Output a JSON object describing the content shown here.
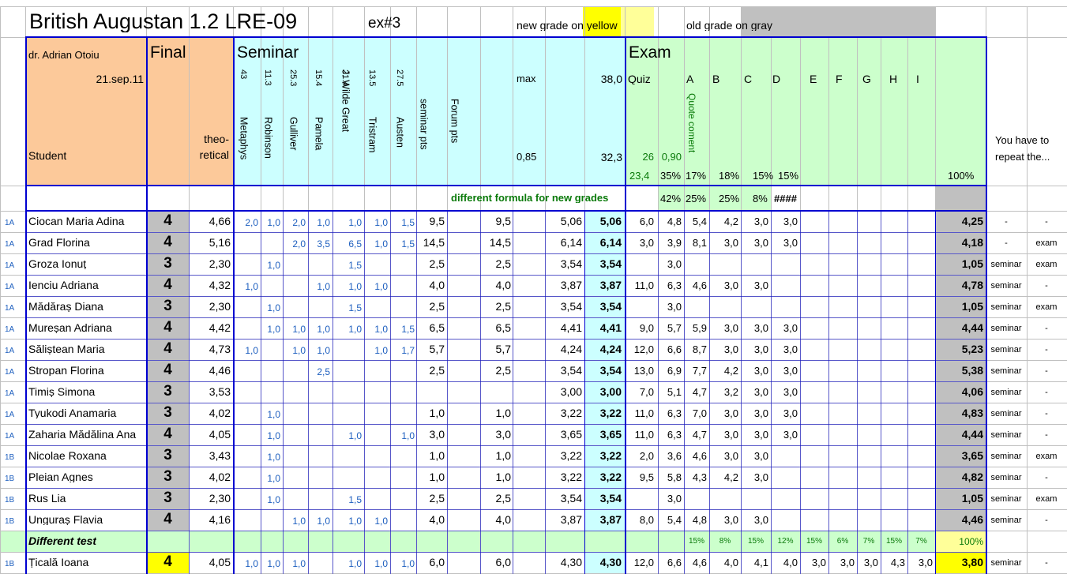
{
  "sheet": {
    "title": "British Augustan 1.2 LRE-09",
    "exercise": "ex#3",
    "legend_new_prefix": "new grade ",
    "legend_new_highlight": "on yellow",
    "legend_old_prefix": "old grade ",
    "legend_old_highlight": "on gray"
  },
  "header": {
    "teacher": "dr. Adrian Otoiu",
    "date": "21.sep.11",
    "student_label": "Student",
    "final_label": "Final",
    "theoretical_label": "theo-\nretical",
    "seminar_label": "Seminar",
    "exam_label": "Exam",
    "repeat_label": "You have to repeat the...",
    "max_label": "max",
    "max_value": "38,0",
    "coef_label": "0,85",
    "coef_value": "32,3",
    "quiz_label": "Quiz",
    "exam_letters": [
      "A",
      "B",
      "C",
      "D",
      "E",
      "F",
      "G",
      "H",
      "I"
    ],
    "quote_label": "Quote coment",
    "quiz_small1": "26",
    "quiz_small2": "0,90",
    "pct_row": [
      "23,4",
      "35%",
      "17%",
      "18%",
      "15%",
      "15%",
      "100%"
    ]
  },
  "seminar_cols": [
    {
      "pct": "43",
      "name": "Metaphys"
    },
    {
      "pct": "11.3",
      "name": "Robinson"
    },
    {
      "pct": "25.3",
      "name": "Gulliver"
    },
    {
      "pct": "15.4",
      "name": "Pamela"
    },
    {
      "pct": "21.4",
      "name": "J. Wilde Great"
    },
    {
      "pct": "13.5",
      "name": "Tristram"
    },
    {
      "pct": "27.5",
      "name": "Austen"
    },
    {
      "pct": "",
      "name": "seminar pts"
    },
    {
      "pct": "",
      "name": "Forum pts"
    }
  ],
  "formula_row": {
    "note": "different formula for new grades",
    "p1": "42%",
    "p2": "25%",
    "p3": "25%",
    "p4": "8%",
    "p5": "####"
  },
  "rows": [
    {
      "g": "1A",
      "name": "Ciocan Maria Adina",
      "final": "4",
      "theo": "4,66",
      "s": [
        "2,0",
        "1,0",
        "2,0",
        "1,0",
        "1,0",
        "1,0",
        "1,5"
      ],
      "sp": "9,5",
      "fp": "9,5",
      "a": "5,06",
      "b": "5,06",
      "q1": "6,0",
      "q2": "4,8",
      "e": [
        "5,4",
        "4,2",
        "3,0",
        "3,0",
        "",
        "",
        "",
        "",
        ""
      ],
      "res": "4,25",
      "rep1": "-",
      "rep2": "-"
    },
    {
      "g": "1A",
      "name": "Grad Florina",
      "final": "4",
      "theo": "5,16",
      "s": [
        "",
        "",
        "2,0",
        "3,5",
        "6,5",
        "1,0",
        "1,5"
      ],
      "sp": "14,5",
      "fp": "14,5",
      "a": "6,14",
      "b": "6,14",
      "q1": "3,0",
      "q2": "3,9",
      "e": [
        "8,1",
        "3,0",
        "3,0",
        "3,0",
        "",
        "",
        "",
        "",
        ""
      ],
      "res": "4,18",
      "rep1": "-",
      "rep2": "exam"
    },
    {
      "g": "1A",
      "name": "Groza Ionuț",
      "final": "3",
      "theo": "2,30",
      "s": [
        "",
        "1,0",
        "",
        "",
        "1,5",
        "",
        ""
      ],
      "sp": "2,5",
      "fp": "2,5",
      "a": "3,54",
      "b": "3,54",
      "q1": "",
      "q2": "3,0",
      "e": [
        "",
        "",
        "",
        "",
        "",
        "",
        "",
        "",
        ""
      ],
      "res": "1,05",
      "rep1": "seminar",
      "rep2": "exam"
    },
    {
      "g": "1A",
      "name": "Ienciu Adriana",
      "final": "4",
      "theo": "4,32",
      "s": [
        "1,0",
        "",
        "",
        "1,0",
        "1,0",
        "1,0",
        ""
      ],
      "sp": "4,0",
      "fp": "4,0",
      "a": "3,87",
      "b": "3,87",
      "q1": "11,0",
      "q2": "6,3",
      "e": [
        "4,6",
        "3,0",
        "3,0",
        "",
        "",
        "",
        "",
        "",
        ""
      ],
      "res": "4,78",
      "rep1": "seminar",
      "rep2": "-"
    },
    {
      "g": "1A",
      "name": "Mădăraș Diana",
      "final": "3",
      "theo": "2,30",
      "s": [
        "",
        "1,0",
        "",
        "",
        "1,5",
        "",
        ""
      ],
      "sp": "2,5",
      "fp": "2,5",
      "a": "3,54",
      "b": "3,54",
      "q1": "",
      "q2": "3,0",
      "e": [
        "",
        "",
        "",
        "",
        "",
        "",
        "",
        "",
        ""
      ],
      "res": "1,05",
      "rep1": "seminar",
      "rep2": "exam"
    },
    {
      "g": "1A",
      "name": "Mureșan Adriana",
      "final": "4",
      "theo": "4,42",
      "s": [
        "",
        "1,0",
        "1,0",
        "1,0",
        "1,0",
        "1,0",
        "1,5"
      ],
      "sp": "6,5",
      "fp": "6,5",
      "a": "4,41",
      "b": "4,41",
      "q1": "9,0",
      "q2": "5,7",
      "e": [
        "5,9",
        "3,0",
        "3,0",
        "3,0",
        "",
        "",
        "",
        "",
        ""
      ],
      "res": "4,44",
      "rep1": "seminar",
      "rep2": "-"
    },
    {
      "g": "1A",
      "name": "Săliștean Maria",
      "final": "4",
      "theo": "4,73",
      "s": [
        "1,0",
        "",
        "1,0",
        "1,0",
        "",
        "1,0",
        "1,7"
      ],
      "sp": "5,7",
      "fp": "5,7",
      "a": "4,24",
      "b": "4,24",
      "q1": "12,0",
      "q2": "6,6",
      "e": [
        "8,7",
        "3,0",
        "3,0",
        "3,0",
        "",
        "",
        "",
        "",
        ""
      ],
      "res": "5,23",
      "rep1": "seminar",
      "rep2": "-"
    },
    {
      "g": "1A",
      "name": "Stropan Florina",
      "final": "4",
      "theo": "4,46",
      "s": [
        "",
        "",
        "",
        "2,5",
        "",
        "",
        ""
      ],
      "sp": "2,5",
      "fp": "2,5",
      "a": "3,54",
      "b": "3,54",
      "q1": "13,0",
      "q2": "6,9",
      "e": [
        "7,7",
        "4,2",
        "3,0",
        "3,0",
        "",
        "",
        "",
        "",
        ""
      ],
      "res": "5,38",
      "rep1": "seminar",
      "rep2": "-"
    },
    {
      "g": "1A",
      "name": "Timiș Simona",
      "final": "3",
      "theo": "3,53",
      "s": [
        "",
        "",
        "",
        "",
        "",
        "",
        ""
      ],
      "sp": "",
      "fp": "",
      "a": "3,00",
      "b": "3,00",
      "q1": "7,0",
      "q2": "5,1",
      "e": [
        "4,7",
        "3,2",
        "3,0",
        "3,0",
        "",
        "",
        "",
        "",
        ""
      ],
      "res": "4,06",
      "rep1": "seminar",
      "rep2": "-"
    },
    {
      "g": "1A",
      "name": "Tyukodi Anamaria",
      "final": "3",
      "theo": "4,02",
      "s": [
        "",
        "1,0",
        "",
        "",
        "",
        "",
        ""
      ],
      "sp": "1,0",
      "fp": "1,0",
      "a": "3,22",
      "b": "3,22",
      "q1": "11,0",
      "q2": "6,3",
      "e": [
        "7,0",
        "3,0",
        "3,0",
        "3,0",
        "",
        "",
        "",
        "",
        ""
      ],
      "res": "4,83",
      "rep1": "seminar",
      "rep2": "-"
    },
    {
      "g": "1A",
      "name": "Zaharia Mădălina Ana",
      "final": "4",
      "theo": "4,05",
      "s": [
        "",
        "1,0",
        "",
        "",
        "1,0",
        "",
        "1,0"
      ],
      "sp": "3,0",
      "fp": "3,0",
      "a": "3,65",
      "b": "3,65",
      "q1": "11,0",
      "q2": "6,3",
      "e": [
        "4,7",
        "3,0",
        "3,0",
        "3,0",
        "",
        "",
        "",
        "",
        ""
      ],
      "res": "4,44",
      "rep1": "seminar",
      "rep2": "-"
    },
    {
      "g": "1B",
      "name": "Nicolae Roxana",
      "final": "3",
      "theo": "3,43",
      "s": [
        "",
        "1,0",
        "",
        "",
        "",
        "",
        ""
      ],
      "sp": "1,0",
      "fp": "1,0",
      "a": "3,22",
      "b": "3,22",
      "q1": "2,0",
      "q2": "3,6",
      "e": [
        "4,6",
        "3,0",
        "3,0",
        "",
        "",
        "",
        "",
        "",
        ""
      ],
      "res": "3,65",
      "rep1": "seminar",
      "rep2": "exam"
    },
    {
      "g": "1B",
      "name": "Pleian Agnes",
      "final": "3",
      "theo": "4,02",
      "s": [
        "",
        "1,0",
        "",
        "",
        "",
        "",
        ""
      ],
      "sp": "1,0",
      "fp": "1,0",
      "a": "3,22",
      "b": "3,22",
      "q1": "9,5",
      "q2": "5,8",
      "e": [
        "4,3",
        "4,2",
        "3,0",
        "",
        "",
        "",
        "",
        "",
        ""
      ],
      "res": "4,82",
      "rep1": "seminar",
      "rep2": "-"
    },
    {
      "g": "1B",
      "name": "Rus Lia",
      "final": "3",
      "theo": "2,30",
      "s": [
        "",
        "1,0",
        "",
        "",
        "1,5",
        "",
        ""
      ],
      "sp": "2,5",
      "fp": "2,5",
      "a": "3,54",
      "b": "3,54",
      "q1": "",
      "q2": "3,0",
      "e": [
        "",
        "",
        "",
        "",
        "",
        "",
        "",
        "",
        ""
      ],
      "res": "1,05",
      "rep1": "seminar",
      "rep2": "exam"
    },
    {
      "g": "1B",
      "name": "Unguraș Flavia",
      "final": "4",
      "theo": "4,16",
      "s": [
        "",
        "",
        "1,0",
        "1,0",
        "1,0",
        "1,0",
        ""
      ],
      "sp": "4,0",
      "fp": "4,0",
      "a": "3,87",
      "b": "3,87",
      "q1": "8,0",
      "q2": "5,4",
      "e": [
        "4,8",
        "3,0",
        "3,0",
        "",
        "",
        "",
        "",
        "",
        ""
      ],
      "res": "4,46",
      "rep1": "seminar",
      "rep2": "-"
    }
  ],
  "diff_row": {
    "label": "Different test",
    "pcts": [
      "15%",
      "8%",
      "15%",
      "12%",
      "15%",
      "6%",
      "7%",
      "15%",
      "7%"
    ],
    "total": "100%"
  },
  "last_row": {
    "g": "1B",
    "name": "Țicală Ioana",
    "final": "4",
    "theo": "4,05",
    "s": [
      "1,0",
      "1,0",
      "1,0",
      "",
      "1,0",
      "1,0",
      "1,0"
    ],
    "sp": "6,0",
    "fp": "6,0",
    "a": "4,30",
    "b": "4,30",
    "q1": "12,0",
    "q2": "6,6",
    "e": [
      "4,6",
      "4,0",
      "4,1",
      "4,0",
      "3,0",
      "3,0",
      "3,0",
      "4,3",
      "3,0"
    ],
    "res": "3,80",
    "rep1": "seminar",
    "rep2": "-"
  },
  "colors": {
    "orange": "#fcc99a",
    "cyan": "#ccffff",
    "green": "#ccffcc",
    "gray": "#c0c0c0",
    "yellow": "#ffff00",
    "pale_yellow": "#ffff99",
    "border_blue": "#0000d0"
  }
}
